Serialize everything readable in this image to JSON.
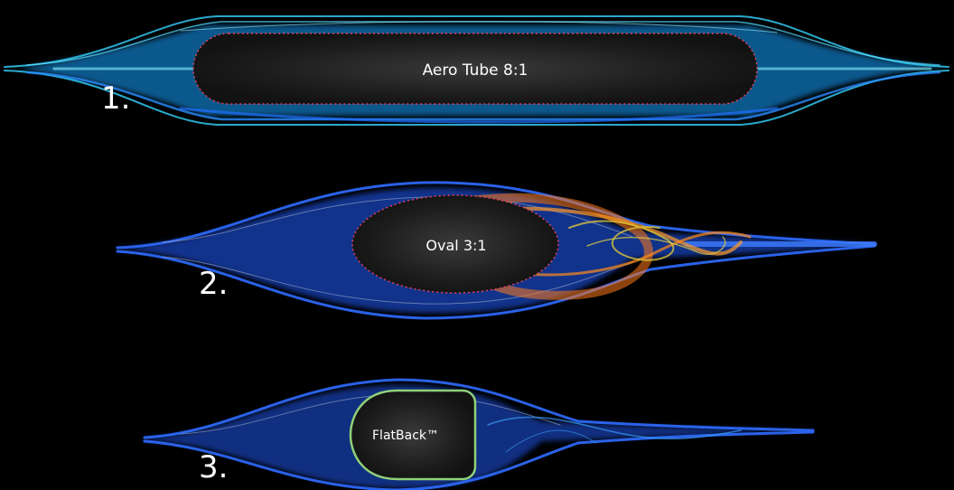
{
  "shapes": [
    {
      "number": "1.",
      "label": "Aero Tube 8:1",
      "flow_color": "#2aa8ff",
      "wake_color": "#3fd6ff",
      "outline_color": "#e0405a",
      "outline_style": "dotted"
    },
    {
      "number": "2.",
      "label": "Oval 3:1",
      "flow_color": "#1f5bff",
      "wake_color": "#ff7a1a",
      "outline_color": "#e0405a",
      "outline_style": "dotted"
    },
    {
      "number": "3.",
      "label": "FlatBack™",
      "flow_color": "#1f5bff",
      "wake_color": "#3aa0ff",
      "outline_color": "#8fd07a",
      "outline_style": "solid"
    }
  ]
}
